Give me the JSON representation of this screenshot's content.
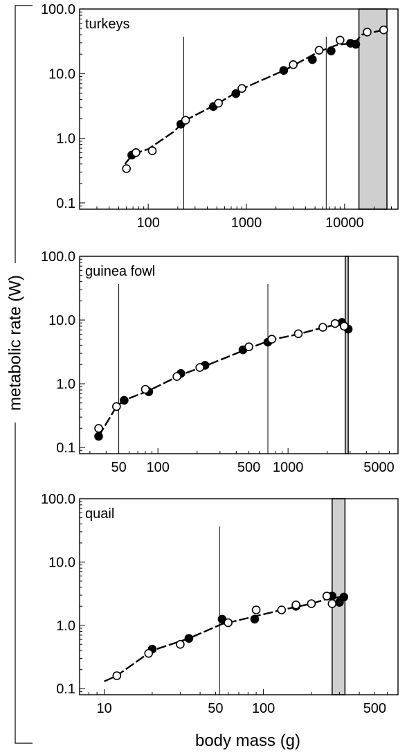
{
  "figure": {
    "ylabel": "metabolic rate (W)",
    "xlabel": "body mass (g)"
  },
  "chart_data": [
    {
      "type": "scatter",
      "title": "turkeys",
      "xscale": "log",
      "yscale": "log",
      "xlim": [
        20,
        35000
      ],
      "ylim": [
        0.08,
        100
      ],
      "xticks": [
        100,
        1000,
        10000
      ],
      "xtick_labels": [
        "100",
        "1000",
        "10000"
      ],
      "yticks": [
        0.1,
        1,
        10,
        100
      ],
      "ytick_labels": [
        "0.1",
        "1.0",
        "10.0",
        "100.0"
      ],
      "shaded_range": [
        14000,
        27000
      ],
      "vertical_lines": [
        230,
        6500
      ],
      "series": [
        {
          "marker": "filled",
          "x": [
            68,
            215,
            460,
            780,
            2400,
            4700,
            7300,
            11500,
            13000
          ],
          "y": [
            0.55,
            1.65,
            3.1,
            4.9,
            11.2,
            16.5,
            22.5,
            29.5,
            28.5
          ]
        },
        {
          "marker": "open",
          "x": [
            60,
            75,
            110,
            240,
            520,
            900,
            3000,
            5500,
            9000,
            17000,
            25000
          ],
          "y": [
            0.34,
            0.6,
            0.64,
            1.9,
            3.5,
            5.9,
            13.8,
            23.0,
            33.0,
            44.0,
            47.5
          ]
        }
      ],
      "curve": {
        "x": [
          58,
          70,
          100,
          180,
          240,
          520,
          900,
          2500,
          5500,
          8500,
          12500,
          15000,
          25000
        ],
        "y": [
          0.4,
          0.57,
          0.68,
          1.25,
          1.9,
          3.5,
          5.8,
          11.5,
          22.0,
          28.0,
          29.5,
          40.0,
          47.5
        ]
      }
    },
    {
      "type": "scatter",
      "title": "guinea fowl",
      "xscale": "log",
      "yscale": "log",
      "xlim": [
        25,
        7000
      ],
      "ylim": [
        0.08,
        100
      ],
      "xticks": [
        50,
        100,
        500,
        1000,
        5000
      ],
      "xtick_labels": [
        "50",
        "100",
        "500",
        "1000",
        "5000"
      ],
      "yticks": [
        0.1,
        1,
        10,
        100
      ],
      "ytick_labels": [
        "0.1",
        "1.0",
        "10.0",
        "100.0"
      ],
      "shaded_range": [
        2750,
        2900
      ],
      "vertical_lines": [
        50,
        700
      ],
      "series": [
        {
          "marker": "filled",
          "x": [
            35,
            55,
            85,
            150,
            230,
            450,
            700,
            2600,
            2900
          ],
          "y": [
            0.15,
            0.55,
            0.75,
            1.45,
            1.95,
            3.4,
            4.5,
            9.2,
            7.2
          ]
        },
        {
          "marker": "open",
          "x": [
            35,
            48,
            80,
            140,
            210,
            500,
            750,
            1200,
            1850,
            2300,
            2700
          ],
          "y": [
            0.2,
            0.44,
            0.82,
            1.3,
            1.8,
            3.8,
            5.0,
            6.1,
            7.7,
            8.8,
            8.0
          ]
        }
      ],
      "curve": {
        "x": [
          35,
          48,
          55,
          85,
          150,
          230,
          500,
          750,
          1200,
          1850,
          2400,
          2900
        ],
        "y": [
          0.15,
          0.44,
          0.55,
          0.78,
          1.38,
          1.9,
          3.6,
          4.9,
          6.0,
          7.6,
          8.6,
          7.3
        ]
      }
    },
    {
      "type": "scatter",
      "title": "quail",
      "xscale": "log",
      "yscale": "log",
      "xlim": [
        7,
        700
      ],
      "ylim": [
        0.08,
        100
      ],
      "xticks": [
        10,
        50,
        100,
        500
      ],
      "xtick_labels": [
        "10",
        "50",
        "100",
        "500"
      ],
      "yticks": [
        0.1,
        1,
        10,
        100
      ],
      "ytick_labels": [
        "0.1",
        "1.0",
        "10.0",
        "100.0"
      ],
      "shaded_range": [
        270,
        325
      ],
      "vertical_lines": [
        53
      ],
      "series": [
        {
          "marker": "filled",
          "x": [
            20,
            34,
            55,
            88,
            160,
            270,
            300,
            320
          ],
          "y": [
            0.42,
            0.62,
            1.25,
            1.25,
            2.0,
            2.9,
            2.3,
            2.8
          ]
        },
        {
          "marker": "open",
          "x": [
            12,
            19,
            30,
            60,
            90,
            130,
            160,
            200,
            250,
            270
          ],
          "y": [
            0.16,
            0.36,
            0.5,
            1.1,
            1.75,
            1.75,
            2.1,
            2.2,
            2.9,
            2.2
          ]
        }
      ],
      "curve": {
        "x": [
          10,
          12,
          20,
          34,
          55,
          60,
          90,
          130,
          200,
          250,
          320
        ],
        "y": [
          0.13,
          0.16,
          0.4,
          0.62,
          1.05,
          1.1,
          1.4,
          1.75,
          2.2,
          2.6,
          2.85
        ]
      }
    }
  ]
}
